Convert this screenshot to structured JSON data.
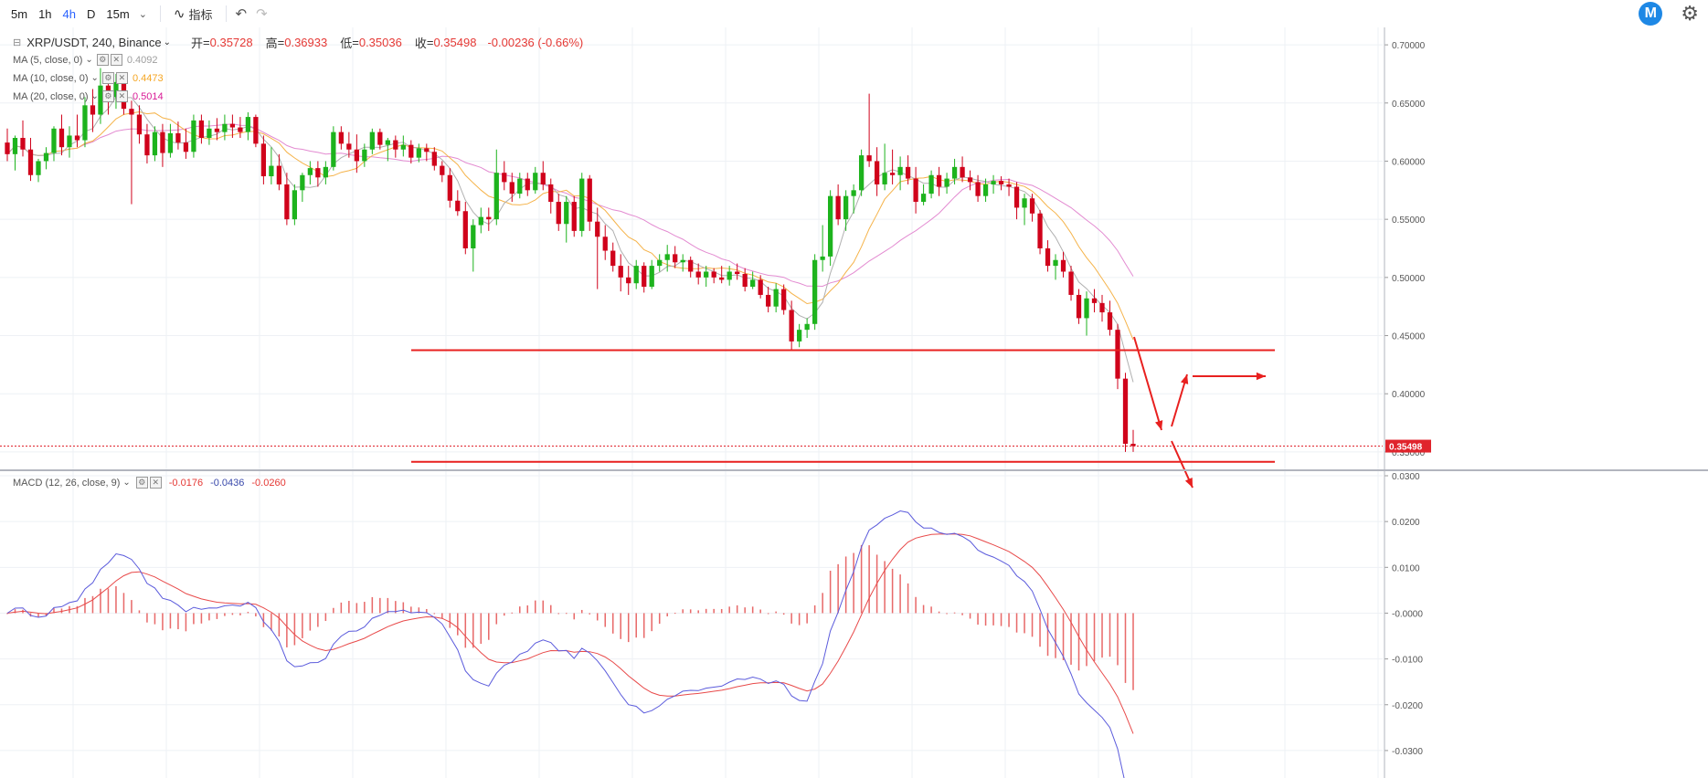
{
  "toolbar": {
    "intervals": [
      "5m",
      "1h",
      "4h",
      "D",
      "15m"
    ],
    "active_interval": "4h",
    "indicators_label": "指标"
  },
  "symbol": {
    "title": "XRP/USDT, 240, Binance",
    "open_label": "开",
    "open": "0.35728",
    "high_label": "高",
    "high": "0.36933",
    "low_label": "低",
    "low": "0.35036",
    "close_label": "收",
    "close": "0.35498",
    "change": "-0.00236 (-0.66%)"
  },
  "ma": [
    {
      "label": "MA (5, close, 0)",
      "value": "0.4092",
      "color": "#9e9e9e"
    },
    {
      "label": "MA (10, close, 0)",
      "value": "0.4473",
      "color": "#f5a623"
    },
    {
      "label": "MA (20, close, 0)",
      "value": "0.5014",
      "color": "#d81b96"
    }
  ],
  "macd": {
    "label": "MACD (12, 26, close, 9)",
    "v1": "-0.0176",
    "v2": "-0.0436",
    "v3": "-0.0260",
    "c1": "#e53935",
    "c2": "#3949ab",
    "c3": "#e53935"
  },
  "price_axis": [
    "0.70000",
    "0.65000",
    "0.60000",
    "0.55000",
    "0.50000",
    "0.45000",
    "0.40000",
    "0.35000"
  ],
  "macd_axis": [
    "0.0300",
    "0.0200",
    "0.0100",
    "-0.0000",
    "-0.0100",
    "-0.0200",
    "-0.0300"
  ],
  "current_price_label": "0.35498",
  "colors": {
    "up": "#26a69a",
    "down": "#e0242c",
    "bull": "#1db31d",
    "bear": "#d0021b",
    "annot": "#e8201f",
    "macd_line": "#5b5bdc",
    "signal_line": "#e84a4a"
  },
  "chart_data": {
    "type": "candlestick",
    "symbol": "XRP/USDT",
    "ylim": [
      0.335,
      0.715
    ],
    "macd_ylim": [
      -0.036,
      0.031
    ],
    "candles": [
      [
        0.616,
        0.628,
        0.6,
        0.606
      ],
      [
        0.606,
        0.622,
        0.592,
        0.62
      ],
      [
        0.62,
        0.635,
        0.604,
        0.61
      ],
      [
        0.61,
        0.62,
        0.583,
        0.588
      ],
      [
        0.588,
        0.602,
        0.582,
        0.6
      ],
      [
        0.6,
        0.612,
        0.593,
        0.607
      ],
      [
        0.607,
        0.63,
        0.6,
        0.628
      ],
      [
        0.628,
        0.64,
        0.605,
        0.612
      ],
      [
        0.612,
        0.63,
        0.603,
        0.622
      ],
      [
        0.622,
        0.64,
        0.612,
        0.618
      ],
      [
        0.618,
        0.655,
        0.612,
        0.648
      ],
      [
        0.648,
        0.662,
        0.625,
        0.64
      ],
      [
        0.64,
        0.68,
        0.632,
        0.665
      ],
      [
        0.665,
        0.67,
        0.64,
        0.655
      ],
      [
        0.655,
        0.675,
        0.645,
        0.668
      ],
      [
        0.668,
        0.672,
        0.64,
        0.645
      ],
      [
        0.645,
        0.652,
        0.563,
        0.64
      ],
      [
        0.64,
        0.648,
        0.615,
        0.623
      ],
      [
        0.623,
        0.632,
        0.598,
        0.605
      ],
      [
        0.605,
        0.63,
        0.6,
        0.625
      ],
      [
        0.625,
        0.632,
        0.595,
        0.607
      ],
      [
        0.607,
        0.632,
        0.603,
        0.624
      ],
      [
        0.624,
        0.634,
        0.61,
        0.616
      ],
      [
        0.616,
        0.628,
        0.602,
        0.608
      ],
      [
        0.608,
        0.64,
        0.603,
        0.635
      ],
      [
        0.635,
        0.64,
        0.615,
        0.62
      ],
      [
        0.62,
        0.635,
        0.614,
        0.628
      ],
      [
        0.628,
        0.637,
        0.618,
        0.625
      ],
      [
        0.625,
        0.64,
        0.618,
        0.632
      ],
      [
        0.632,
        0.64,
        0.62,
        0.629
      ],
      [
        0.629,
        0.638,
        0.62,
        0.625
      ],
      [
        0.625,
        0.642,
        0.618,
        0.638
      ],
      [
        0.638,
        0.64,
        0.612,
        0.615
      ],
      [
        0.615,
        0.622,
        0.58,
        0.587
      ],
      [
        0.587,
        0.612,
        0.58,
        0.596
      ],
      [
        0.596,
        0.606,
        0.575,
        0.58
      ],
      [
        0.58,
        0.59,
        0.545,
        0.55
      ],
      [
        0.55,
        0.58,
        0.545,
        0.575
      ],
      [
        0.575,
        0.59,
        0.565,
        0.588
      ],
      [
        0.588,
        0.6,
        0.58,
        0.594
      ],
      [
        0.594,
        0.6,
        0.578,
        0.586
      ],
      [
        0.586,
        0.6,
        0.58,
        0.595
      ],
      [
        0.595,
        0.63,
        0.592,
        0.625
      ],
      [
        0.625,
        0.63,
        0.61,
        0.615
      ],
      [
        0.615,
        0.625,
        0.603,
        0.61
      ],
      [
        0.61,
        0.623,
        0.59,
        0.6
      ],
      [
        0.6,
        0.615,
        0.595,
        0.61
      ],
      [
        0.61,
        0.628,
        0.606,
        0.625
      ],
      [
        0.625,
        0.628,
        0.61,
        0.614
      ],
      [
        0.614,
        0.62,
        0.6,
        0.618
      ],
      [
        0.618,
        0.622,
        0.603,
        0.61
      ],
      [
        0.61,
        0.622,
        0.604,
        0.614
      ],
      [
        0.614,
        0.618,
        0.598,
        0.603
      ],
      [
        0.603,
        0.615,
        0.599,
        0.611
      ],
      [
        0.611,
        0.615,
        0.6,
        0.608
      ],
      [
        0.608,
        0.612,
        0.592,
        0.596
      ],
      [
        0.596,
        0.6,
        0.582,
        0.588
      ],
      [
        0.588,
        0.594,
        0.56,
        0.566
      ],
      [
        0.566,
        0.575,
        0.553,
        0.557
      ],
      [
        0.557,
        0.565,
        0.52,
        0.525
      ],
      [
        0.525,
        0.55,
        0.505,
        0.545
      ],
      [
        0.545,
        0.56,
        0.538,
        0.552
      ],
      [
        0.552,
        0.56,
        0.54,
        0.55
      ],
      [
        0.55,
        0.61,
        0.545,
        0.59
      ],
      [
        0.59,
        0.6,
        0.575,
        0.582
      ],
      [
        0.582,
        0.59,
        0.565,
        0.572
      ],
      [
        0.572,
        0.59,
        0.568,
        0.585
      ],
      [
        0.585,
        0.59,
        0.57,
        0.575
      ],
      [
        0.575,
        0.595,
        0.572,
        0.59
      ],
      [
        0.59,
        0.6,
        0.575,
        0.58
      ],
      [
        0.58,
        0.585,
        0.555,
        0.565
      ],
      [
        0.565,
        0.572,
        0.54,
        0.546
      ],
      [
        0.546,
        0.57,
        0.53,
        0.565
      ],
      [
        0.565,
        0.57,
        0.535,
        0.54
      ],
      [
        0.54,
        0.59,
        0.535,
        0.585
      ],
      [
        0.585,
        0.588,
        0.54,
        0.548
      ],
      [
        0.548,
        0.56,
        0.49,
        0.535
      ],
      [
        0.535,
        0.545,
        0.515,
        0.523
      ],
      [
        0.523,
        0.53,
        0.505,
        0.51
      ],
      [
        0.51,
        0.52,
        0.488,
        0.5
      ],
      [
        0.5,
        0.51,
        0.485,
        0.495
      ],
      [
        0.495,
        0.515,
        0.49,
        0.51
      ],
      [
        0.51,
        0.513,
        0.487,
        0.492
      ],
      [
        0.492,
        0.515,
        0.49,
        0.51
      ],
      [
        0.51,
        0.52,
        0.505,
        0.515
      ],
      [
        0.515,
        0.528,
        0.505,
        0.52
      ],
      [
        0.52,
        0.527,
        0.508,
        0.513
      ],
      [
        0.513,
        0.52,
        0.505,
        0.515
      ],
      [
        0.515,
        0.518,
        0.5,
        0.505
      ],
      [
        0.505,
        0.512,
        0.494,
        0.5
      ],
      [
        0.5,
        0.51,
        0.492,
        0.505
      ],
      [
        0.505,
        0.508,
        0.495,
        0.5
      ],
      [
        0.5,
        0.51,
        0.495,
        0.498
      ],
      [
        0.498,
        0.51,
        0.493,
        0.505
      ],
      [
        0.505,
        0.512,
        0.498,
        0.503
      ],
      [
        0.503,
        0.508,
        0.488,
        0.492
      ],
      [
        0.492,
        0.505,
        0.49,
        0.498
      ],
      [
        0.498,
        0.502,
        0.482,
        0.485
      ],
      [
        0.485,
        0.492,
        0.47,
        0.475
      ],
      [
        0.475,
        0.495,
        0.47,
        0.49
      ],
      [
        0.49,
        0.494,
        0.468,
        0.472
      ],
      [
        0.472,
        0.48,
        0.438,
        0.445
      ],
      [
        0.445,
        0.46,
        0.44,
        0.455
      ],
      [
        0.455,
        0.465,
        0.448,
        0.46
      ],
      [
        0.46,
        0.52,
        0.455,
        0.515
      ],
      [
        0.515,
        0.545,
        0.505,
        0.518
      ],
      [
        0.518,
        0.575,
        0.51,
        0.57
      ],
      [
        0.57,
        0.58,
        0.545,
        0.55
      ],
      [
        0.55,
        0.575,
        0.54,
        0.57
      ],
      [
        0.57,
        0.58,
        0.555,
        0.575
      ],
      [
        0.575,
        0.61,
        0.57,
        0.605
      ],
      [
        0.605,
        0.658,
        0.595,
        0.6
      ],
      [
        0.6,
        0.612,
        0.57,
        0.58
      ],
      [
        0.58,
        0.615,
        0.575,
        0.59
      ],
      [
        0.59,
        0.61,
        0.58,
        0.588
      ],
      [
        0.588,
        0.604,
        0.575,
        0.595
      ],
      [
        0.595,
        0.605,
        0.58,
        0.585
      ],
      [
        0.585,
        0.595,
        0.555,
        0.565
      ],
      [
        0.565,
        0.58,
        0.562,
        0.572
      ],
      [
        0.572,
        0.592,
        0.568,
        0.588
      ],
      [
        0.588,
        0.595,
        0.57,
        0.578
      ],
      [
        0.578,
        0.59,
        0.572,
        0.585
      ],
      [
        0.585,
        0.602,
        0.58,
        0.595
      ],
      [
        0.595,
        0.604,
        0.582,
        0.586
      ],
      [
        0.586,
        0.592,
        0.575,
        0.582
      ],
      [
        0.582,
        0.588,
        0.565,
        0.57
      ],
      [
        0.57,
        0.585,
        0.565,
        0.58
      ],
      [
        0.58,
        0.588,
        0.572,
        0.583
      ],
      [
        0.583,
        0.587,
        0.575,
        0.58
      ],
      [
        0.58,
        0.585,
        0.57,
        0.578
      ],
      [
        0.578,
        0.582,
        0.55,
        0.56
      ],
      [
        0.56,
        0.572,
        0.545,
        0.568
      ],
      [
        0.568,
        0.572,
        0.548,
        0.555
      ],
      [
        0.555,
        0.558,
        0.52,
        0.525
      ],
      [
        0.525,
        0.532,
        0.505,
        0.51
      ],
      [
        0.51,
        0.52,
        0.498,
        0.515
      ],
      [
        0.515,
        0.522,
        0.5,
        0.505
      ],
      [
        0.505,
        0.51,
        0.48,
        0.485
      ],
      [
        0.485,
        0.49,
        0.46,
        0.465
      ],
      [
        0.465,
        0.488,
        0.45,
        0.482
      ],
      [
        0.482,
        0.49,
        0.47,
        0.478
      ],
      [
        0.478,
        0.485,
        0.462,
        0.47
      ],
      [
        0.47,
        0.48,
        0.45,
        0.455
      ],
      [
        0.455,
        0.46,
        0.404,
        0.413
      ],
      [
        0.413,
        0.418,
        0.35,
        0.357
      ],
      [
        0.357,
        0.369,
        0.35,
        0.355
      ]
    ],
    "ma5_ends": [
      0.585,
      0.409
    ],
    "ma10_ends": [
      0.597,
      0.447
    ],
    "ma20_ends": [
      0.558,
      0.501
    ],
    "support_levels": [
      0.4375,
      0.3415
    ],
    "macd_ends": {
      "macd": [
        0.019,
        -0.0436
      ],
      "signal": [
        0.013,
        -0.026
      ]
    }
  }
}
